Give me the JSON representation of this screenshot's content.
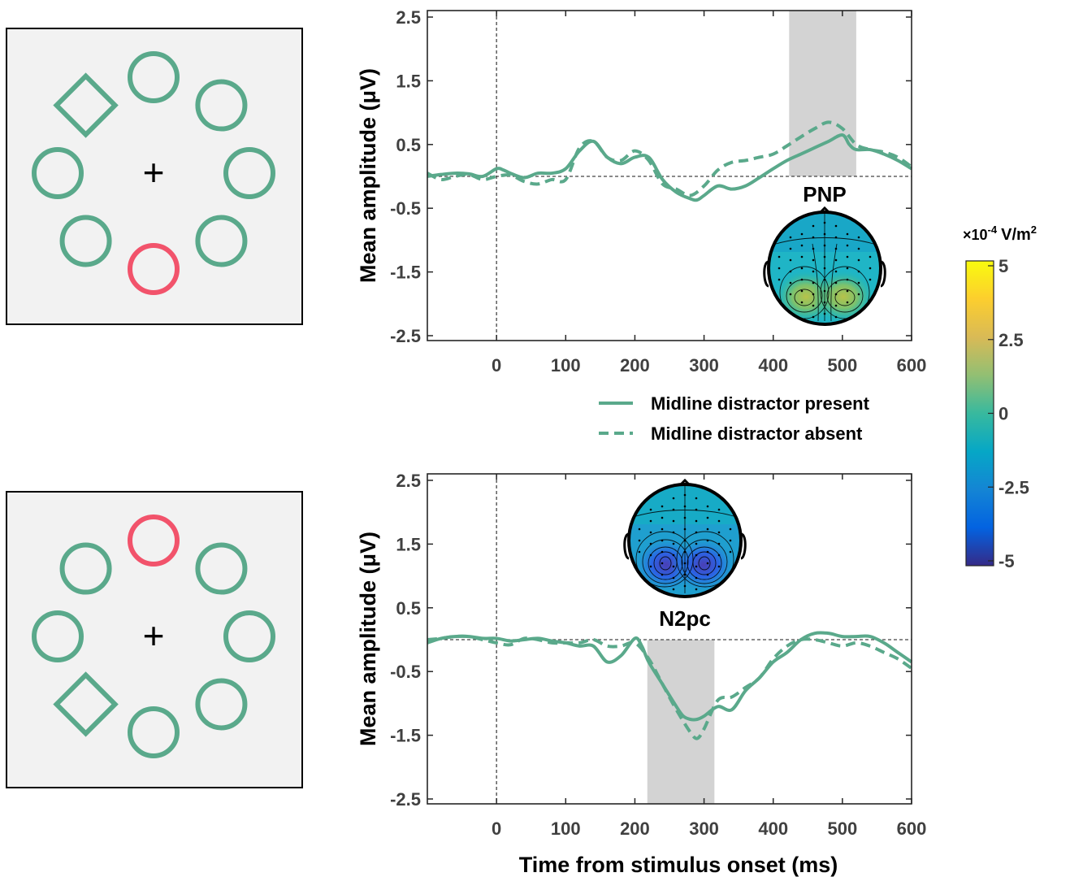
{
  "colors": {
    "series": "#5aa98b",
    "target": "#f2536b",
    "panel_bg": "#f2f2f2",
    "window": "#d3d3d3"
  },
  "stimulus_panels": [
    {
      "fixation": "+",
      "shapes": [
        "circle",
        "circle",
        "circle",
        "circle",
        "circle-target",
        "circle",
        "circle",
        "diamond"
      ]
    },
    {
      "fixation": "+",
      "shapes": [
        "circle-target",
        "circle",
        "circle",
        "circle",
        "circle",
        "diamond",
        "circle",
        "circle"
      ]
    }
  ],
  "chart_data": [
    {
      "type": "line",
      "ylabel": "Mean amplitude (μV)",
      "xlabel": "",
      "xlim": [
        -100,
        600
      ],
      "ylim": [
        -2.5,
        2.5
      ],
      "xticks": [
        "0",
        "100",
        "200",
        "300",
        "400",
        "500",
        "600"
      ],
      "yticks": [
        "2.5",
        "1.5",
        "0.5",
        "-0.5",
        "-1.5",
        "-2.5"
      ],
      "highlight_window": [
        423,
        520
      ],
      "topo_label": "PNP",
      "topo_polarity": "positive",
      "series": [
        {
          "name": "Midline distractor present",
          "style": "solid",
          "x": [
            -100,
            -80,
            -60,
            -40,
            -20,
            0,
            10,
            20,
            40,
            60,
            80,
            100,
            120,
            140,
            160,
            180,
            200,
            220,
            240,
            260,
            280,
            290,
            300,
            320,
            340,
            360,
            380,
            400,
            420,
            440,
            460,
            480,
            500,
            510,
            520,
            540,
            560,
            580,
            600
          ],
          "y": [
            0,
            0.03,
            0.05,
            0.04,
            0,
            0.12,
            0.1,
            0.05,
            -0.02,
            0.05,
            0.05,
            0.12,
            0.4,
            0.55,
            0.3,
            0.2,
            0.3,
            0.3,
            -0.05,
            -0.25,
            -0.35,
            -0.37,
            -0.3,
            -0.15,
            -0.2,
            -0.15,
            -0.02,
            0.12,
            0.25,
            0.35,
            0.45,
            0.55,
            0.65,
            0.5,
            0.42,
            0.42,
            0.35,
            0.25,
            0.12
          ]
        },
        {
          "name": "Midline distractor absent",
          "style": "dashed",
          "x": [
            -100,
            -80,
            -60,
            -40,
            -20,
            0,
            20,
            40,
            60,
            80,
            100,
            120,
            140,
            160,
            180,
            200,
            220,
            240,
            260,
            280,
            300,
            320,
            340,
            360,
            380,
            400,
            420,
            440,
            460,
            480,
            500,
            520,
            540,
            560,
            580,
            600
          ],
          "y": [
            0.05,
            -0.05,
            0,
            0.03,
            -0.05,
            0,
            0.02,
            -0.08,
            -0.12,
            -0.05,
            -0.05,
            0.45,
            0.55,
            0.3,
            0.25,
            0.4,
            0.25,
            -0.12,
            -0.2,
            -0.3,
            -0.15,
            0.1,
            0.22,
            0.25,
            0.3,
            0.35,
            0.48,
            0.62,
            0.75,
            0.85,
            0.75,
            0.5,
            0.42,
            0.38,
            0.3,
            0.15
          ]
        }
      ]
    },
    {
      "type": "line",
      "ylabel": "Mean amplitude (μV)",
      "xlabel": "Time from stimulus onset (ms)",
      "xlim": [
        -100,
        600
      ],
      "ylim": [
        -2.5,
        2.5
      ],
      "xticks": [
        "0",
        "100",
        "200",
        "300",
        "400",
        "500",
        "600"
      ],
      "yticks": [
        "2.5",
        "1.5",
        "0.5",
        "-0.5",
        "-1.5",
        "-2.5"
      ],
      "highlight_window": [
        218,
        315
      ],
      "topo_label": "N2pc",
      "topo_polarity": "negative",
      "series": [
        {
          "name": "Midline distractor present",
          "style": "solid",
          "x": [
            -100,
            -80,
            -60,
            -40,
            -20,
            0,
            20,
            40,
            60,
            80,
            100,
            120,
            140,
            160,
            180,
            200,
            210,
            220,
            240,
            260,
            270,
            280,
            290,
            300,
            320,
            340,
            360,
            380,
            400,
            420,
            440,
            460,
            480,
            500,
            520,
            540,
            560,
            580,
            600
          ],
          "y": [
            -0.05,
            0.02,
            0.05,
            0.05,
            0.02,
            0.02,
            -0.02,
            0,
            0.02,
            -0.02,
            -0.05,
            -0.1,
            -0.1,
            -0.35,
            -0.25,
            0.02,
            -0.1,
            -0.35,
            -0.7,
            -1.05,
            -1.2,
            -1.25,
            -1.25,
            -1.2,
            -1.05,
            -1.1,
            -0.8,
            -0.6,
            -0.35,
            -0.2,
            0,
            0.1,
            0.1,
            0.05,
            0.05,
            0.05,
            -0.05,
            -0.2,
            -0.35
          ]
        },
        {
          "name": "Midline distractor absent",
          "style": "dashed",
          "x": [
            -100,
            -80,
            -60,
            -40,
            -20,
            0,
            20,
            40,
            60,
            80,
            100,
            120,
            140,
            160,
            180,
            200,
            220,
            240,
            260,
            280,
            290,
            300,
            320,
            340,
            360,
            380,
            400,
            420,
            440,
            460,
            480,
            500,
            520,
            540,
            560,
            580,
            600
          ],
          "y": [
            0,
            0.02,
            0.05,
            0.05,
            0,
            -0.05,
            -0.08,
            0.02,
            0,
            -0.05,
            -0.05,
            -0.05,
            0,
            -0.1,
            -0.1,
            -0.05,
            -0.3,
            -0.7,
            -1.1,
            -1.45,
            -1.55,
            -1.4,
            -0.95,
            -0.9,
            -0.75,
            -0.6,
            -0.3,
            -0.1,
            0,
            0,
            -0.05,
            -0.1,
            -0.05,
            -0.1,
            -0.2,
            -0.3,
            -0.45
          ]
        }
      ]
    }
  ],
  "legend": {
    "present": "Midline distractor present",
    "absent": "Midline distractor absent"
  },
  "colorbar": {
    "unit_prefix": "×10",
    "unit_exp": "-4",
    "unit_main": "V/m",
    "unit_sup": "2",
    "ticks": [
      "5",
      "2.5",
      "0",
      "-2.5",
      "-5"
    ],
    "range": [
      -5,
      5
    ],
    "colormap": "parula"
  }
}
